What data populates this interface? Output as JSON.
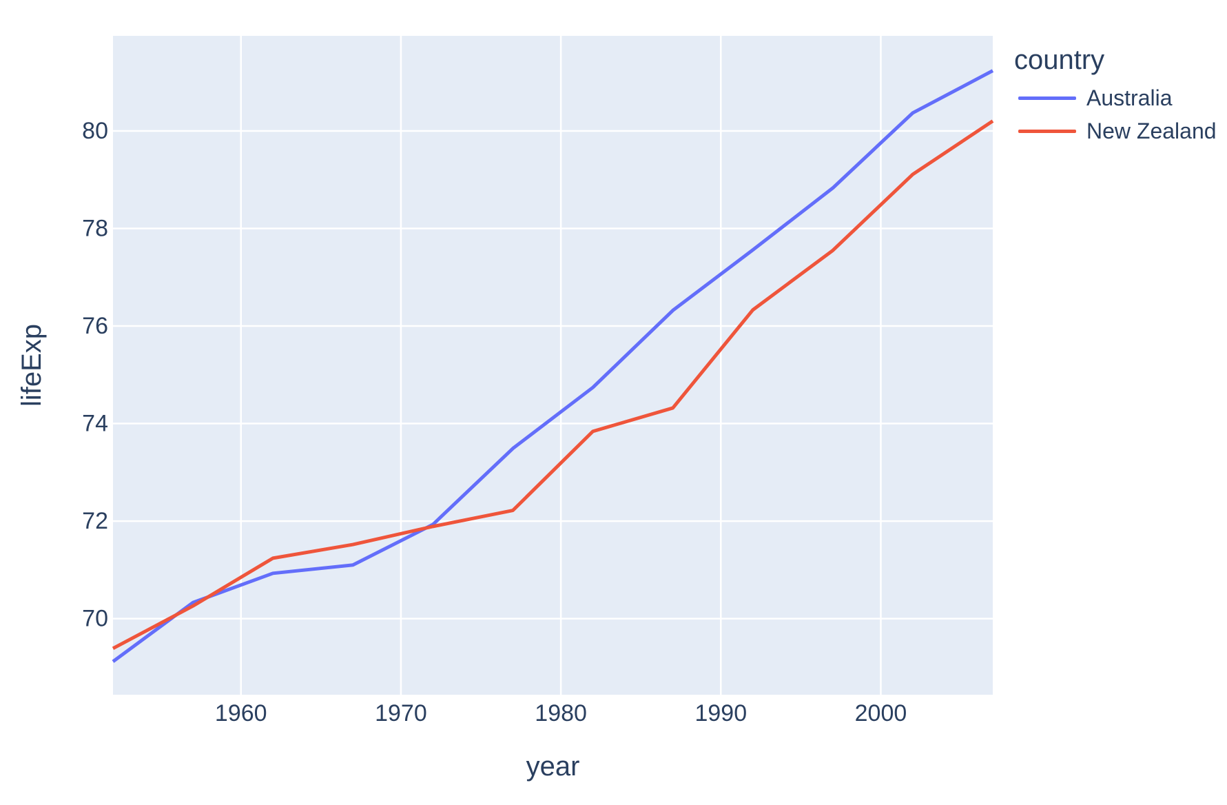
{
  "chart_data": {
    "type": "line",
    "title": "",
    "xlabel": "year",
    "ylabel": "lifeExp",
    "x": [
      1952,
      1957,
      1962,
      1967,
      1972,
      1977,
      1982,
      1987,
      1992,
      1997,
      2002,
      2007
    ],
    "series": [
      {
        "name": "Australia",
        "color": "#636EFA",
        "values": [
          69.12,
          70.33,
          70.93,
          71.1,
          71.93,
          73.49,
          74.74,
          76.32,
          77.56,
          78.83,
          80.37,
          81.235
        ]
      },
      {
        "name": "New Zealand",
        "color": "#EF553B",
        "values": [
          69.39,
          70.26,
          71.24,
          71.52,
          71.89,
          72.22,
          73.84,
          74.32,
          76.33,
          77.55,
          79.11,
          80.204
        ]
      }
    ],
    "xlim": [
      1952,
      2007
    ],
    "ylim": [
      68.44,
      81.95
    ],
    "xticks": [
      1960,
      1970,
      1980,
      1990,
      2000
    ],
    "yticks": [
      70,
      72,
      74,
      76,
      78,
      80
    ],
    "grid": true,
    "legend": {
      "title": "country",
      "position": "top-right-outside"
    },
    "colors": {
      "paper_bg": "#FFFFFF",
      "plot_bg": "#E5ECF6",
      "grid": "#FFFFFF",
      "text": "#2A3F5F"
    }
  }
}
